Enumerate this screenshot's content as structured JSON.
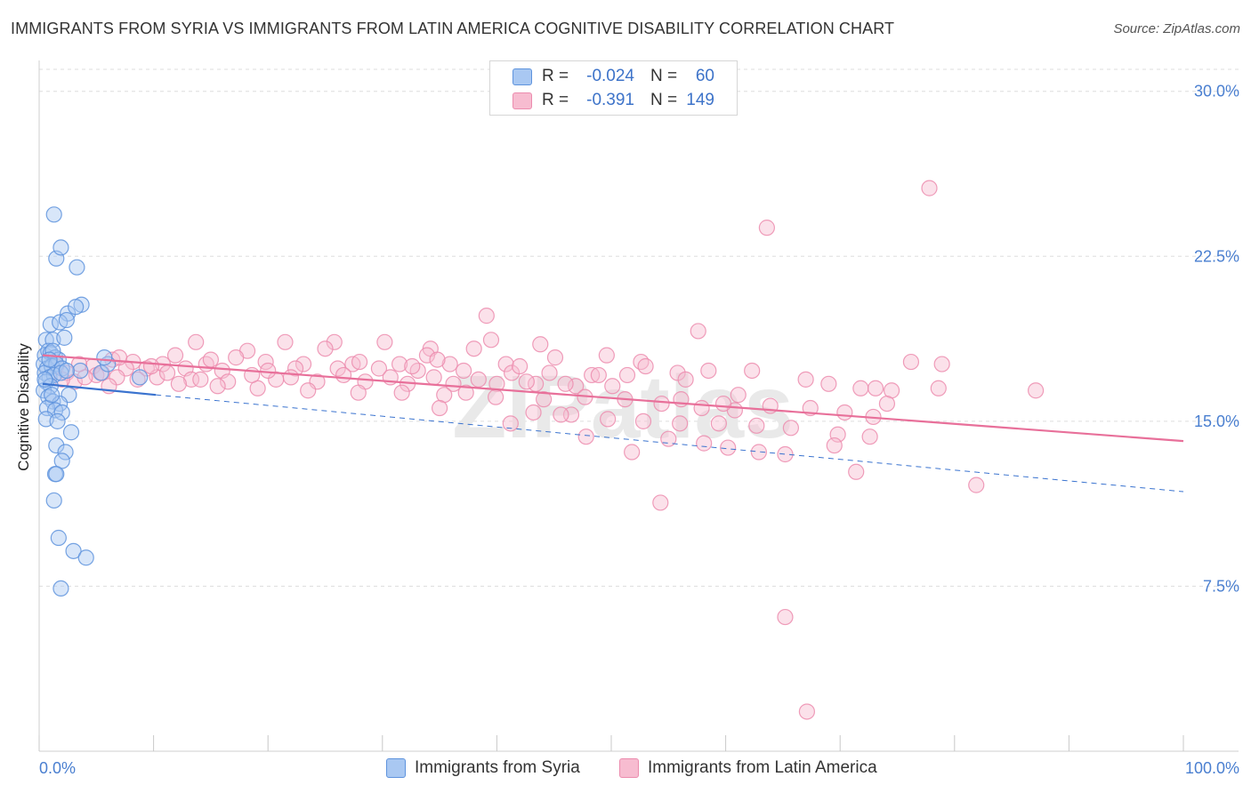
{
  "header": {
    "title": "IMMIGRANTS FROM SYRIA VS IMMIGRANTS FROM LATIN AMERICA COGNITIVE DISABILITY CORRELATION CHART",
    "source": "Source: ZipAtlas.com"
  },
  "watermark": "ZIPatlas",
  "legend": {
    "rows": [
      {
        "r_label": "R =",
        "r_value": "-0.024",
        "n_label": "N =",
        "n_value": "60"
      },
      {
        "r_label": "R =",
        "r_value": "-0.391",
        "n_label": "N =",
        "n_value": "149"
      }
    ]
  },
  "bottom_legend": {
    "items": [
      {
        "label": "Immigrants from Syria"
      },
      {
        "label": "Immigrants from Latin America"
      }
    ]
  },
  "colors": {
    "syria_fill": "#a9c8f2",
    "syria_stroke": "#5e93dd",
    "syria_line": "#3a73cf",
    "latam_fill": "#f7bcd0",
    "latam_stroke": "#ec8cae",
    "latam_line": "#e8709a",
    "tick_text": "#4a7fd0",
    "grid": "#dddddd"
  },
  "chart_data": {
    "type": "scatter",
    "title": "IMMIGRANTS FROM SYRIA VS IMMIGRANTS FROM LATIN AMERICA COGNITIVE DISABILITY CORRELATION CHART",
    "xlabel": "",
    "ylabel": "Cognitive Disability",
    "xlim": [
      0,
      100
    ],
    "ylim": [
      0,
      31
    ],
    "x_tick_labels": [
      "0.0%",
      "100.0%"
    ],
    "y_ticks": [
      7.5,
      15.0,
      22.5,
      30.0
    ],
    "y_tick_labels": [
      "7.5%",
      "15.0%",
      "22.5%",
      "30.0%"
    ],
    "grid": true,
    "legend_position": "top-center",
    "series": [
      {
        "name": "Immigrants from Syria",
        "r": -0.024,
        "n": 60,
        "trend_solid": [
          [
            0.3,
            16.7
          ],
          [
            10.2,
            16.2
          ]
        ],
        "trend_dashed": [
          [
            10.2,
            16.2
          ],
          [
            100,
            11.8
          ]
        ],
        "points": [
          [
            1.3,
            24.4
          ],
          [
            1.5,
            22.4
          ],
          [
            1.9,
            22.9
          ],
          [
            3.3,
            22.0
          ],
          [
            3.7,
            20.3
          ],
          [
            2.5,
            19.9
          ],
          [
            3.2,
            20.2
          ],
          [
            1.0,
            19.4
          ],
          [
            1.8,
            19.5
          ],
          [
            2.4,
            19.6
          ],
          [
            0.6,
            18.7
          ],
          [
            1.2,
            18.7
          ],
          [
            2.2,
            18.8
          ],
          [
            0.5,
            18.0
          ],
          [
            0.8,
            18.2
          ],
          [
            1.0,
            18.1
          ],
          [
            1.4,
            17.9
          ],
          [
            1.7,
            17.8
          ],
          [
            0.4,
            17.6
          ],
          [
            0.7,
            17.4
          ],
          [
            1.1,
            17.5
          ],
          [
            1.5,
            17.6
          ],
          [
            2.0,
            17.4
          ],
          [
            0.5,
            17.2
          ],
          [
            0.9,
            17.0
          ],
          [
            1.3,
            17.1
          ],
          [
            1.9,
            17.2
          ],
          [
            0.6,
            16.8
          ],
          [
            1.0,
            16.6
          ],
          [
            0.4,
            16.4
          ],
          [
            0.8,
            16.1
          ],
          [
            2.6,
            16.2
          ],
          [
            1.2,
            15.9
          ],
          [
            1.8,
            15.8
          ],
          [
            0.7,
            15.6
          ],
          [
            1.4,
            15.5
          ],
          [
            2.0,
            15.4
          ],
          [
            0.6,
            15.1
          ],
          [
            1.6,
            15.0
          ],
          [
            2.8,
            14.5
          ],
          [
            1.5,
            13.9
          ],
          [
            2.3,
            13.6
          ],
          [
            2.0,
            13.2
          ],
          [
            1.4,
            12.6
          ],
          [
            1.5,
            12.6
          ],
          [
            1.3,
            11.4
          ],
          [
            1.7,
            9.7
          ],
          [
            3.0,
            9.1
          ],
          [
            4.1,
            8.8
          ],
          [
            1.9,
            7.4
          ],
          [
            5.4,
            17.2
          ],
          [
            6.0,
            17.6
          ],
          [
            8.8,
            17.0
          ],
          [
            5.7,
            17.9
          ],
          [
            3.6,
            17.3
          ],
          [
            1.2,
            18.2
          ],
          [
            0.9,
            17.8
          ],
          [
            2.4,
            17.3
          ],
          [
            1.1,
            16.2
          ],
          [
            0.5,
            16.9
          ]
        ]
      },
      {
        "name": "Immigrants from Latin America",
        "r": -0.391,
        "n": 149,
        "trend": [
          [
            0.3,
            18.0
          ],
          [
            100,
            14.1
          ]
        ],
        "points": [
          [
            77.8,
            25.6
          ],
          [
            63.6,
            23.8
          ],
          [
            39.1,
            19.8
          ],
          [
            57.6,
            19.1
          ],
          [
            39.5,
            18.7
          ],
          [
            43.8,
            18.5
          ],
          [
            13.7,
            18.6
          ],
          [
            21.5,
            18.6
          ],
          [
            25.8,
            18.6
          ],
          [
            30.2,
            18.6
          ],
          [
            18.2,
            18.2
          ],
          [
            25.0,
            18.3
          ],
          [
            34.2,
            18.3
          ],
          [
            38.0,
            18.3
          ],
          [
            49.6,
            18.0
          ],
          [
            11.9,
            18.0
          ],
          [
            17.2,
            17.9
          ],
          [
            33.9,
            18.0
          ],
          [
            45.1,
            17.9
          ],
          [
            6.4,
            17.8
          ],
          [
            8.2,
            17.7
          ],
          [
            10.8,
            17.6
          ],
          [
            14.6,
            17.6
          ],
          [
            19.8,
            17.7
          ],
          [
            23.1,
            17.6
          ],
          [
            27.4,
            17.6
          ],
          [
            31.5,
            17.6
          ],
          [
            35.9,
            17.6
          ],
          [
            40.8,
            17.6
          ],
          [
            52.6,
            17.7
          ],
          [
            53.0,
            17.5
          ],
          [
            76.2,
            17.7
          ],
          [
            78.9,
            17.6
          ],
          [
            4.7,
            17.5
          ],
          [
            7.6,
            17.4
          ],
          [
            9.4,
            17.4
          ],
          [
            12.8,
            17.4
          ],
          [
            16.0,
            17.3
          ],
          [
            22.4,
            17.4
          ],
          [
            26.1,
            17.4
          ],
          [
            29.7,
            17.4
          ],
          [
            33.1,
            17.3
          ],
          [
            37.1,
            17.3
          ],
          [
            41.3,
            17.2
          ],
          [
            44.6,
            17.2
          ],
          [
            48.3,
            17.1
          ],
          [
            51.4,
            17.1
          ],
          [
            55.8,
            17.2
          ],
          [
            58.5,
            17.3
          ],
          [
            62.3,
            17.3
          ],
          [
            2.4,
            17.2
          ],
          [
            5.0,
            17.1
          ],
          [
            6.8,
            17.0
          ],
          [
            10.3,
            17.0
          ],
          [
            13.3,
            16.9
          ],
          [
            16.5,
            16.8
          ],
          [
            20.7,
            16.9
          ],
          [
            24.3,
            16.8
          ],
          [
            28.5,
            16.8
          ],
          [
            32.2,
            16.7
          ],
          [
            36.2,
            16.7
          ],
          [
            40.0,
            16.7
          ],
          [
            43.4,
            16.7
          ],
          [
            46.9,
            16.6
          ],
          [
            50.1,
            16.6
          ],
          [
            56.5,
            16.9
          ],
          [
            67.0,
            16.9
          ],
          [
            69.0,
            16.7
          ],
          [
            71.8,
            16.5
          ],
          [
            73.1,
            16.5
          ],
          [
            74.5,
            16.4
          ],
          [
            87.1,
            16.4
          ],
          [
            78.6,
            16.5
          ],
          [
            3.1,
            16.8
          ],
          [
            8.6,
            16.9
          ],
          [
            12.2,
            16.7
          ],
          [
            15.6,
            16.6
          ],
          [
            19.1,
            16.5
          ],
          [
            23.5,
            16.4
          ],
          [
            27.9,
            16.3
          ],
          [
            31.7,
            16.3
          ],
          [
            35.4,
            16.2
          ],
          [
            39.9,
            16.1
          ],
          [
            44.1,
            16.0
          ],
          [
            47.7,
            16.1
          ],
          [
            51.2,
            16.0
          ],
          [
            54.4,
            15.8
          ],
          [
            57.9,
            15.6
          ],
          [
            60.8,
            15.5
          ],
          [
            63.9,
            15.7
          ],
          [
            67.4,
            15.6
          ],
          [
            70.4,
            15.4
          ],
          [
            72.9,
            15.2
          ],
          [
            74.1,
            15.8
          ],
          [
            37.3,
            16.3
          ],
          [
            43.2,
            15.4
          ],
          [
            46.5,
            15.3
          ],
          [
            49.7,
            15.1
          ],
          [
            52.8,
            15.0
          ],
          [
            56.0,
            14.9
          ],
          [
            59.4,
            14.9
          ],
          [
            62.7,
            14.8
          ],
          [
            65.7,
            14.7
          ],
          [
            69.8,
            14.4
          ],
          [
            72.6,
            14.3
          ],
          [
            35.0,
            15.6
          ],
          [
            45.6,
            15.3
          ],
          [
            41.2,
            14.9
          ],
          [
            47.8,
            14.3
          ],
          [
            51.8,
            13.6
          ],
          [
            55.0,
            14.2
          ],
          [
            58.1,
            14.0
          ],
          [
            60.2,
            13.8
          ],
          [
            62.9,
            13.6
          ],
          [
            65.2,
            13.5
          ],
          [
            69.5,
            13.9
          ],
          [
            71.4,
            12.7
          ],
          [
            81.9,
            12.1
          ],
          [
            54.3,
            11.3
          ],
          [
            65.2,
            6.1
          ],
          [
            67.1,
            1.8
          ],
          [
            34.8,
            17.8
          ],
          [
            42.0,
            17.5
          ],
          [
            48.9,
            17.1
          ],
          [
            61.1,
            16.2
          ],
          [
            56.1,
            16.0
          ],
          [
            59.8,
            15.8
          ],
          [
            4.0,
            17.0
          ],
          [
            6.1,
            16.6
          ],
          [
            11.2,
            17.2
          ],
          [
            14.1,
            16.9
          ],
          [
            18.6,
            17.1
          ],
          [
            22.0,
            17.0
          ],
          [
            26.6,
            17.1
          ],
          [
            30.7,
            17.0
          ],
          [
            34.5,
            17.0
          ],
          [
            38.4,
            16.9
          ],
          [
            42.6,
            16.8
          ],
          [
            46.0,
            16.7
          ],
          [
            1.5,
            17.5
          ],
          [
            2.0,
            16.9
          ],
          [
            3.5,
            17.6
          ],
          [
            5.5,
            17.2
          ],
          [
            7.0,
            17.9
          ],
          [
            9.8,
            17.5
          ],
          [
            15.0,
            17.8
          ],
          [
            20.0,
            17.3
          ],
          [
            28.0,
            17.7
          ],
          [
            32.6,
            17.5
          ]
        ]
      }
    ]
  }
}
